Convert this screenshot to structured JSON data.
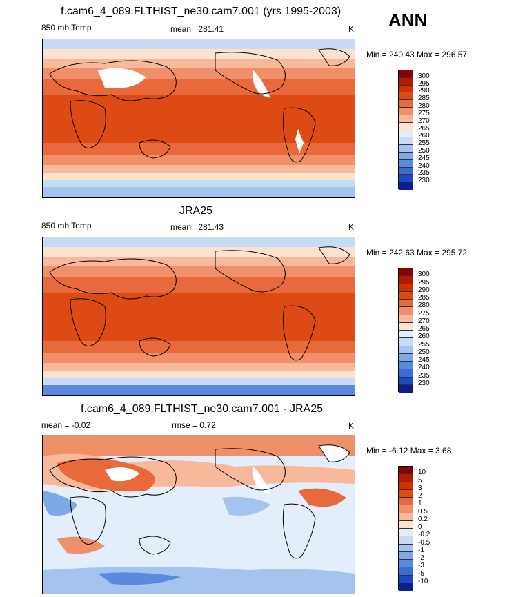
{
  "ann_label": "ANN",
  "panels": [
    {
      "title": "f.cam6_4_089.FLTHIST_ne30.cam7.001 (yrs 1995-2003)",
      "left_label": "850 mb Temp",
      "center_label": "mean= 281.41",
      "units": "K",
      "minmax": "Min = 240.43 Max = 296.57",
      "levels": [
        "300",
        "295",
        "290",
        "285",
        "280",
        "275",
        "270",
        "265",
        "260",
        "255",
        "250",
        "245",
        "240",
        "235",
        "230"
      ],
      "colors": [
        "#8b0000",
        "#b31b00",
        "#cc3300",
        "#dd4a14",
        "#e86a3c",
        "#f0906a",
        "#f7b99a",
        "#fde2d0",
        "#e3eefa",
        "#c6dcf5",
        "#a4c4ef",
        "#7ea8e8",
        "#5a8adf",
        "#3a6bd6",
        "#1c48c4",
        "#0a1f8a"
      ]
    },
    {
      "title": "JRA25",
      "left_label": "850 mb Temp",
      "center_label": "mean= 281.43",
      "units": "K",
      "minmax": "Min = 242.63 Max = 295.72",
      "levels": [
        "300",
        "295",
        "290",
        "285",
        "280",
        "275",
        "270",
        "265",
        "260",
        "255",
        "250",
        "245",
        "240",
        "235",
        "230"
      ],
      "colors": [
        "#8b0000",
        "#b31b00",
        "#cc3300",
        "#dd4a14",
        "#e86a3c",
        "#f0906a",
        "#f7b99a",
        "#fde2d0",
        "#e3eefa",
        "#c6dcf5",
        "#a4c4ef",
        "#7ea8e8",
        "#5a8adf",
        "#3a6bd6",
        "#1c48c4",
        "#0a1f8a"
      ]
    },
    {
      "title": "f.cam6_4_089.FLTHIST_ne30.cam7.001 - JRA25",
      "left_label": "mean =  -0.02",
      "center_label": "rmse =   0.72",
      "units": "K",
      "minmax": "Min =  -6.12 Max =   3.68",
      "levels": [
        "10",
        "5",
        "3",
        "2",
        "1",
        "0.5",
        "0.2",
        "0",
        "-0.2",
        "-0.5",
        "-1",
        "-2",
        "-3",
        "-5",
        "-10"
      ],
      "colors": [
        "#8b0000",
        "#b31b00",
        "#cc3300",
        "#dd4a14",
        "#e86a3c",
        "#f0906a",
        "#f7b99a",
        "#fde2d0",
        "#e3eefa",
        "#c6dcf5",
        "#a4c4ef",
        "#7ea8e8",
        "#5a8adf",
        "#3a6bd6",
        "#1c48c4",
        "#0a1f8a"
      ]
    }
  ]
}
